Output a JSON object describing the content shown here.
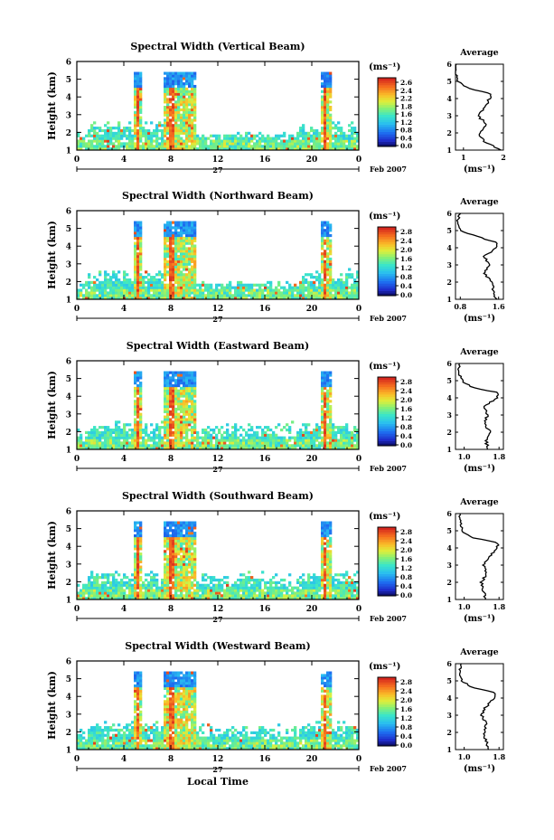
{
  "chart_data": [
    {
      "type": "heatmap",
      "title": "Spectral Width (Vertical Beam)",
      "ylabel": "Height (km)",
      "xlabel": "",
      "xticks": [
        "0",
        "4",
        "8",
        "12",
        "16",
        "20",
        "0"
      ],
      "yticks": [
        "1",
        "2",
        "3",
        "4",
        "5",
        "6"
      ],
      "ylim": [
        1,
        6
      ],
      "xlim_hours": [
        0,
        24
      ],
      "date_label": "27",
      "month_label": "Feb 2007",
      "colorbar_unit": "(ms⁻¹)",
      "colorbar_ticks": [
        "2.6",
        "2.4",
        "2.2",
        "1.8",
        "1.6",
        "1.2",
        "0.8",
        "0.4",
        "0.0"
      ],
      "colorbar_range": [
        0,
        2.8
      ],
      "profile": {
        "title": "Average",
        "xlabel": "(ms⁻¹)",
        "xticks": [
          "1",
          "2"
        ],
        "xlim": [
          0.8,
          2.0
        ],
        "heights": [
          1.0,
          1.5,
          2.0,
          2.5,
          3.0,
          3.5,
          4.0,
          4.3,
          4.6,
          5.0,
          5.5,
          6.0
        ],
        "values": [
          1.95,
          1.5,
          1.4,
          1.6,
          1.35,
          1.55,
          1.65,
          1.7,
          1.1,
          0.85,
          0.8,
          0.82
        ]
      }
    },
    {
      "type": "heatmap",
      "title": "Spectral Width (Northward Beam)",
      "ylabel": "Height (km)",
      "xlabel": "",
      "xticks": [
        "0",
        "4",
        "8",
        "12",
        "16",
        "20",
        "0"
      ],
      "yticks": [
        "1",
        "2",
        "3",
        "4",
        "5",
        "6"
      ],
      "ylim": [
        1,
        6
      ],
      "xlim_hours": [
        0,
        24
      ],
      "date_label": "27",
      "month_label": "Feb 2007",
      "colorbar_unit": "(ms⁻¹)",
      "colorbar_ticks": [
        "2.8",
        "2.4",
        "2.0",
        "1.6",
        "1.2",
        "0.8",
        "0.4",
        "0.0"
      ],
      "colorbar_range": [
        0,
        2.8
      ],
      "profile": {
        "title": "Average",
        "xlabel": "(ms⁻¹)",
        "xticks": [
          "0.8",
          "1.6"
        ],
        "xlim": [
          0.7,
          1.7
        ],
        "heights": [
          1.0,
          1.5,
          2.0,
          2.5,
          3.0,
          3.5,
          4.0,
          4.3,
          4.6,
          5.0,
          5.5,
          6.0
        ],
        "values": [
          1.55,
          1.5,
          1.45,
          1.3,
          1.4,
          1.3,
          1.55,
          1.6,
          1.2,
          0.8,
          0.75,
          0.78
        ]
      }
    },
    {
      "type": "heatmap",
      "title": "Spectral Width (Eastward Beam)",
      "ylabel": "Height (km)",
      "xlabel": "",
      "xticks": [
        "0",
        "4",
        "8",
        "12",
        "16",
        "20",
        "0"
      ],
      "yticks": [
        "1",
        "2",
        "3",
        "4",
        "5",
        "6"
      ],
      "ylim": [
        1,
        6
      ],
      "xlim_hours": [
        0,
        24
      ],
      "date_label": "27",
      "month_label": "Feb 2007",
      "colorbar_unit": "(ms⁻¹)",
      "colorbar_ticks": [
        "2.8",
        "2.4",
        "2.0",
        "1.6",
        "1.2",
        "0.8",
        "0.4",
        "0.0"
      ],
      "colorbar_range": [
        0,
        2.8
      ],
      "profile": {
        "title": "Average",
        "xlabel": "(ms⁻¹)",
        "xticks": [
          "1.0",
          "1.8"
        ],
        "xlim": [
          0.8,
          1.9
        ],
        "heights": [
          1.0,
          1.5,
          2.0,
          2.5,
          3.0,
          3.5,
          4.0,
          4.3,
          4.6,
          5.0,
          5.5,
          6.0
        ],
        "values": [
          1.55,
          1.5,
          1.6,
          1.45,
          1.55,
          1.45,
          1.75,
          1.8,
          1.2,
          0.95,
          0.85,
          0.9
        ]
      }
    },
    {
      "type": "heatmap",
      "title": "Spectral Width (Southward Beam)",
      "ylabel": "Height (km)",
      "xlabel": "",
      "xticks": [
        "0",
        "4",
        "8",
        "12",
        "16",
        "20",
        "0"
      ],
      "yticks": [
        "1",
        "2",
        "3",
        "4",
        "5",
        "6"
      ],
      "ylim": [
        1,
        6
      ],
      "xlim_hours": [
        0,
        24
      ],
      "date_label": "27",
      "month_label": "Feb 2007",
      "colorbar_unit": "(ms⁻¹)",
      "colorbar_ticks": [
        "2.8",
        "2.4",
        "2.0",
        "1.6",
        "1.2",
        "0.8",
        "0.4",
        "0.0"
      ],
      "colorbar_range": [
        0,
        2.8
      ],
      "profile": {
        "title": "Average",
        "xlabel": "(ms⁻¹)",
        "xticks": [
          "1.0",
          "1.8"
        ],
        "xlim": [
          0.8,
          1.9
        ],
        "heights": [
          1.0,
          1.5,
          2.0,
          2.5,
          3.0,
          3.5,
          4.0,
          4.3,
          4.6,
          5.0,
          5.5,
          6.0
        ],
        "values": [
          1.5,
          1.45,
          1.4,
          1.5,
          1.45,
          1.6,
          1.75,
          1.8,
          1.2,
          0.95,
          0.9,
          0.88
        ]
      }
    },
    {
      "type": "heatmap",
      "title": "Spectral Width (Westward Beam)",
      "ylabel": "Height (km)",
      "xlabel": "Local Time",
      "xticks": [
        "0",
        "4",
        "8",
        "12",
        "16",
        "20",
        "0"
      ],
      "yticks": [
        "1",
        "2",
        "3",
        "4",
        "5",
        "6"
      ],
      "ylim": [
        1,
        6
      ],
      "xlim_hours": [
        0,
        24
      ],
      "date_label": "27",
      "month_label": "Feb 2007",
      "colorbar_unit": "(ms⁻¹)",
      "colorbar_ticks": [
        "2.8",
        "2.4",
        "2.0",
        "1.6",
        "1.2",
        "0.8",
        "0.4",
        "0.0"
      ],
      "colorbar_range": [
        0,
        2.8
      ],
      "profile": {
        "title": "Average",
        "xlabel": "(ms⁻¹)",
        "xticks": [
          "1.0",
          "1.8"
        ],
        "xlim": [
          0.8,
          1.9
        ],
        "heights": [
          1.0,
          1.5,
          2.0,
          2.5,
          3.0,
          3.5,
          4.0,
          4.3,
          4.6,
          5.0,
          5.5,
          6.0
        ],
        "values": [
          1.55,
          1.5,
          1.45,
          1.5,
          1.4,
          1.5,
          1.7,
          1.75,
          1.2,
          0.95,
          0.9,
          0.9
        ]
      }
    }
  ]
}
